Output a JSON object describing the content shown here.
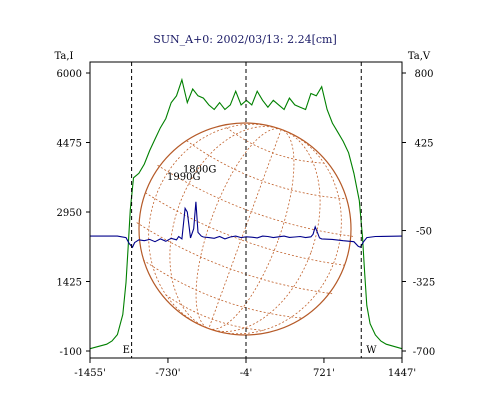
{
  "chart_data": {
    "type": "line",
    "title": "SUN_A+0: 2002/03/13: 2.24[cm]",
    "y_left_label": "Ta,I",
    "y_right_label": "Ta,V",
    "x_ticks": [
      "-1455'",
      "-730'",
      "-4'",
      "721'",
      "1447'"
    ],
    "x_tick_values": [
      -1455,
      -730,
      -4,
      721,
      1447
    ],
    "xlim": [
      -1455,
      1447
    ],
    "y_left_ticks": [
      "6000",
      "4475",
      "2950",
      "1425",
      "-100"
    ],
    "y_left_values": [
      6000,
      4475,
      2950,
      1425,
      -100
    ],
    "ylim_left": [
      -100,
      6000
    ],
    "y_right_ticks": [
      "800",
      "425",
      "-50",
      "-325",
      "-700"
    ],
    "y_right_values": [
      800,
      425,
      -50,
      -325,
      -700
    ],
    "ylim_right": [
      -700,
      800
    ],
    "markers": [
      {
        "label": "E",
        "x": -1068
      },
      {
        "label": "W",
        "x": 1068
      }
    ],
    "center_line_x": -4,
    "annotations": [
      {
        "label": "1990G",
        "x": -583,
        "y": 3650
      },
      {
        "label": "1800G",
        "x": -435,
        "y": 3820
      }
    ],
    "series": [
      {
        "color": "#008000",
        "axis": "left",
        "x": [
          -1455,
          -1300,
          -1250,
          -1200,
          -1150,
          -1120,
          -1100,
          -1080,
          -1050,
          -1000,
          -950,
          -900,
          -850,
          -800,
          -750,
          -700,
          -650,
          -600,
          -550,
          -500,
          -450,
          -400,
          -350,
          -300,
          -250,
          -200,
          -150,
          -100,
          -50,
          0,
          50,
          100,
          150,
          200,
          250,
          300,
          350,
          400,
          450,
          500,
          550,
          600,
          650,
          700,
          750,
          800,
          850,
          900,
          950,
          1000,
          1050,
          1080,
          1100,
          1120,
          1150,
          1200,
          1250,
          1300,
          1447
        ],
        "y": [
          -50,
          50,
          120,
          260,
          700,
          1400,
          2200,
          3000,
          3700,
          3800,
          4000,
          4300,
          4550,
          4800,
          5000,
          5350,
          5500,
          5850,
          5350,
          5650,
          5500,
          5450,
          5300,
          5200,
          5350,
          5200,
          5300,
          5600,
          5300,
          5400,
          5300,
          5600,
          5400,
          5250,
          5400,
          5300,
          5200,
          5450,
          5300,
          5250,
          5200,
          5550,
          5500,
          5700,
          5200,
          4900,
          4700,
          4500,
          4250,
          3800,
          3200,
          2400,
          1600,
          900,
          500,
          250,
          120,
          50,
          -50
        ]
      },
      {
        "color": "#00008b",
        "axis": "right",
        "x": [
          -1455,
          -1200,
          -1120,
          -1090,
          -1060,
          -1040,
          -1000,
          -950,
          -900,
          -850,
          -800,
          -750,
          -700,
          -650,
          -630,
          -600,
          -570,
          -550,
          -520,
          -490,
          -470,
          -450,
          -420,
          -400,
          -350,
          -300,
          -250,
          -200,
          -150,
          -100,
          -50,
          0,
          50,
          100,
          150,
          200,
          250,
          300,
          350,
          400,
          450,
          500,
          550,
          600,
          620,
          640,
          660,
          680,
          700,
          800,
          900,
          1000,
          1040,
          1060,
          1090,
          1120,
          1200,
          1447
        ],
        "y": [
          -80,
          -80,
          -88,
          -120,
          -140,
          -115,
          -100,
          -105,
          -98,
          -110,
          -95,
          -108,
          -92,
          -100,
          -82,
          -95,
          70,
          50,
          -90,
          -40,
          105,
          -60,
          -80,
          -85,
          -88,
          -92,
          -82,
          -95,
          -85,
          -80,
          -88,
          -84,
          -86,
          -90,
          -80,
          -82,
          -88,
          -84,
          -80,
          -87,
          -85,
          -82,
          -88,
          -84,
          -70,
          -30,
          -60,
          -90,
          -95,
          -98,
          -105,
          -110,
          -135,
          -140,
          -110,
          -88,
          -82,
          -80
        ]
      }
    ]
  }
}
